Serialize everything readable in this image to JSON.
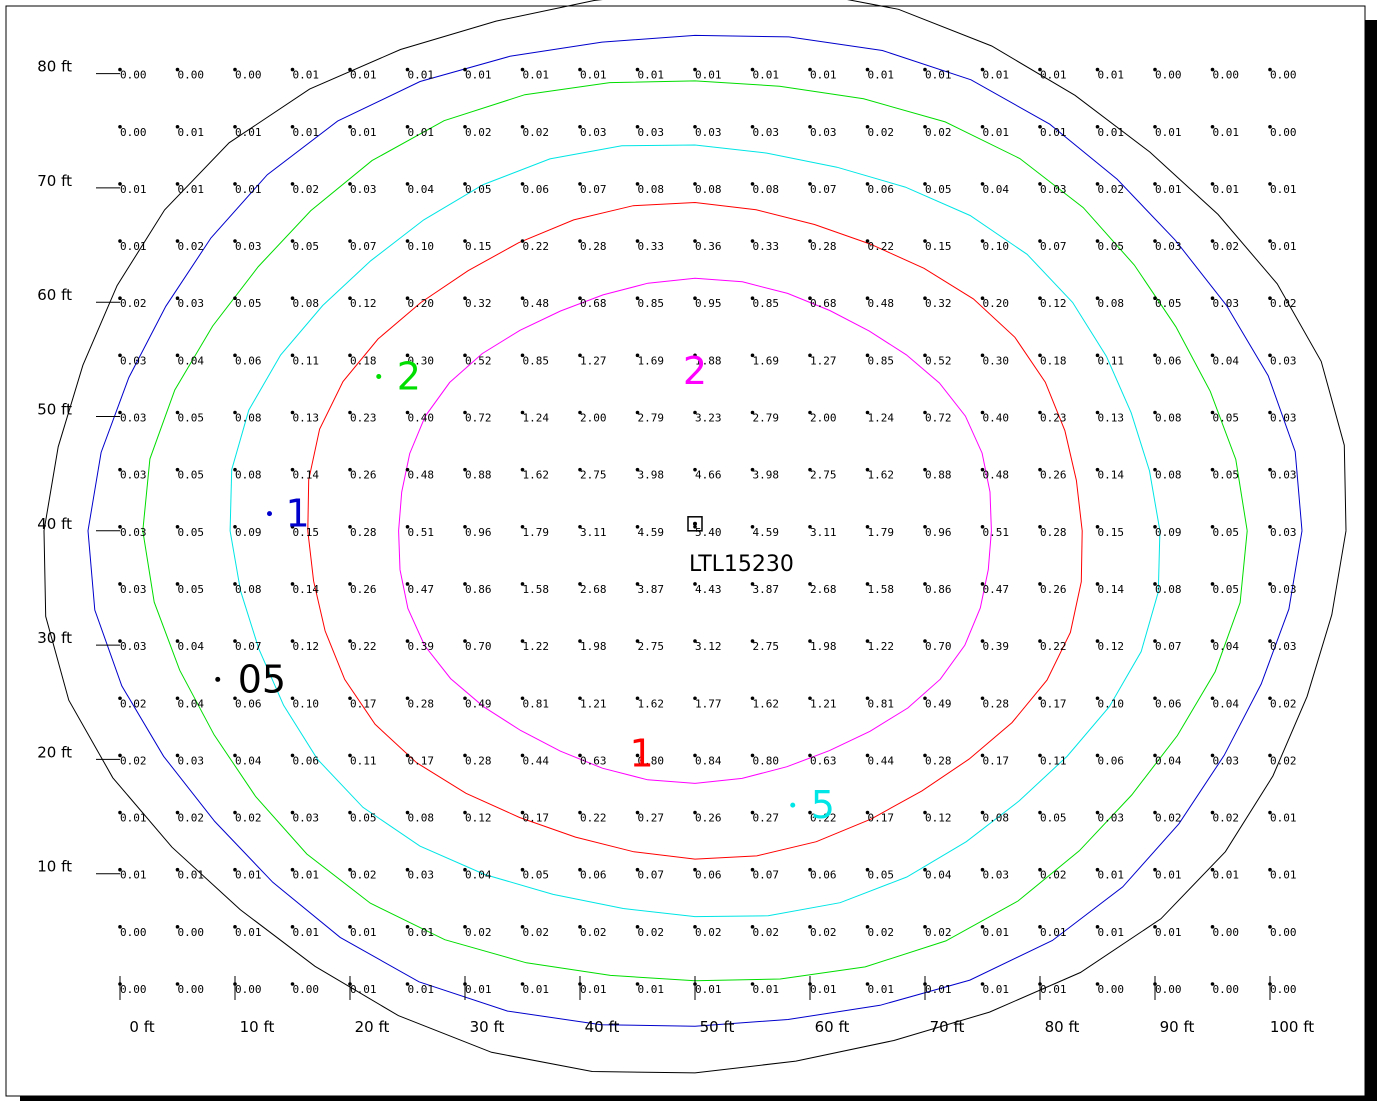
{
  "chart_data": {
    "type": "heatmap",
    "units": "ft",
    "x_ticks": [
      "0 ft",
      "10 ft",
      "20 ft",
      "30 ft",
      "40 ft",
      "50 ft",
      "60 ft",
      "70 ft",
      "80 ft",
      "90 ft",
      "100 ft"
    ],
    "y_ticks": [
      "80 ft",
      "70 ft",
      "60 ft",
      "50 ft",
      "40 ft",
      "30 ft",
      "20 ft",
      "10 ft"
    ],
    "x": [
      0,
      5,
      10,
      15,
      20,
      25,
      30,
      35,
      40,
      45,
      50,
      55,
      60,
      65,
      70,
      75,
      80,
      85,
      90,
      95,
      100
    ],
    "y": [
      80,
      75,
      70,
      65,
      60,
      55,
      50,
      45,
      40,
      35,
      30,
      25,
      20,
      15,
      10,
      5,
      0
    ],
    "grid_values": [
      [
        "0.00",
        "0.00",
        "0.00",
        "0.01",
        "0.01",
        "0.01",
        "0.01",
        "0.01",
        "0.01",
        "0.01",
        "0.01",
        "0.01",
        "0.01",
        "0.01",
        "0.01",
        "0.01",
        "0.01",
        "0.01",
        "0.00",
        "0.00",
        "0.00"
      ],
      [
        "0.00",
        "0.01",
        "0.01",
        "0.01",
        "0.01",
        "0.01",
        "0.02",
        "0.02",
        "0.03",
        "0.03",
        "0.03",
        "0.03",
        "0.03",
        "0.02",
        "0.02",
        "0.01",
        "0.01",
        "0.01",
        "0.01",
        "0.01",
        "0.00"
      ],
      [
        "0.01",
        "0.01",
        "0.01",
        "0.02",
        "0.03",
        "0.04",
        "0.05",
        "0.06",
        "0.07",
        "0.08",
        "0.08",
        "0.08",
        "0.07",
        "0.06",
        "0.05",
        "0.04",
        "0.03",
        "0.02",
        "0.01",
        "0.01",
        "0.01"
      ],
      [
        "0.01",
        "0.02",
        "0.03",
        "0.05",
        "0.07",
        "0.10",
        "0.15",
        "0.22",
        "0.28",
        "0.33",
        "0.36",
        "0.33",
        "0.28",
        "0.22",
        "0.15",
        "0.10",
        "0.07",
        "0.05",
        "0.03",
        "0.02",
        "0.01"
      ],
      [
        "0.02",
        "0.03",
        "0.05",
        "0.08",
        "0.12",
        "0.20",
        "0.32",
        "0.48",
        "0.68",
        "0.85",
        "0.95",
        "0.85",
        "0.68",
        "0.48",
        "0.32",
        "0.20",
        "0.12",
        "0.08",
        "0.05",
        "0.03",
        "0.02"
      ],
      [
        "0.03",
        "0.04",
        "0.06",
        "0.11",
        "0.18",
        "0.30",
        "0.52",
        "0.85",
        "1.27",
        "1.69",
        "1.88",
        "1.69",
        "1.27",
        "0.85",
        "0.52",
        "0.30",
        "0.18",
        "0.11",
        "0.06",
        "0.04",
        "0.03"
      ],
      [
        "0.03",
        "0.05",
        "0.08",
        "0.13",
        "0.23",
        "0.40",
        "0.72",
        "1.24",
        "2.00",
        "2.79",
        "3.23",
        "2.79",
        "2.00",
        "1.24",
        "0.72",
        "0.40",
        "0.23",
        "0.13",
        "0.08",
        "0.05",
        "0.03"
      ],
      [
        "0.03",
        "0.05",
        "0.08",
        "0.14",
        "0.26",
        "0.48",
        "0.88",
        "1.62",
        "2.75",
        "3.98",
        "4.66",
        "3.98",
        "2.75",
        "1.62",
        "0.88",
        "0.48",
        "0.26",
        "0.14",
        "0.08",
        "0.05",
        "0.03"
      ],
      [
        "0.03",
        "0.05",
        "0.09",
        "0.15",
        "0.28",
        "0.51",
        "0.96",
        "1.79",
        "3.11",
        "4.59",
        "5.40",
        "4.59",
        "3.11",
        "1.79",
        "0.96",
        "0.51",
        "0.28",
        "0.15",
        "0.09",
        "0.05",
        "0.03"
      ],
      [
        "0.03",
        "0.05",
        "0.08",
        "0.14",
        "0.26",
        "0.47",
        "0.86",
        "1.58",
        "2.68",
        "3.87",
        "4.43",
        "3.87",
        "2.68",
        "1.58",
        "0.86",
        "0.47",
        "0.26",
        "0.14",
        "0.08",
        "0.05",
        "0.03"
      ],
      [
        "0.03",
        "0.04",
        "0.07",
        "0.12",
        "0.22",
        "0.39",
        "0.70",
        "1.22",
        "1.98",
        "2.75",
        "3.12",
        "2.75",
        "1.98",
        "1.22",
        "0.70",
        "0.39",
        "0.22",
        "0.12",
        "0.07",
        "0.04",
        "0.03"
      ],
      [
        "0.02",
        "0.04",
        "0.06",
        "0.10",
        "0.17",
        "0.28",
        "0.49",
        "0.81",
        "1.21",
        "1.62",
        "1.77",
        "1.62",
        "1.21",
        "0.81",
        "0.49",
        "0.28",
        "0.17",
        "0.10",
        "0.06",
        "0.04",
        "0.02"
      ],
      [
        "0.02",
        "0.03",
        "0.04",
        "0.06",
        "0.11",
        "0.17",
        "0.28",
        "0.44",
        "0.63",
        "0.80",
        "0.84",
        "0.80",
        "0.63",
        "0.44",
        "0.28",
        "0.17",
        "0.11",
        "0.06",
        "0.04",
        "0.03",
        "0.02"
      ],
      [
        "0.01",
        "0.02",
        "0.02",
        "0.03",
        "0.05",
        "0.08",
        "0.12",
        "0.17",
        "0.22",
        "0.27",
        "0.26",
        "0.27",
        "0.22",
        "0.17",
        "0.12",
        "0.08",
        "0.05",
        "0.03",
        "0.02",
        "0.02",
        "0.01"
      ],
      [
        "0.01",
        "0.01",
        "0.01",
        "0.01",
        "0.02",
        "0.03",
        "0.04",
        "0.05",
        "0.06",
        "0.07",
        "0.06",
        "0.07",
        "0.06",
        "0.05",
        "0.04",
        "0.03",
        "0.02",
        "0.01",
        "0.01",
        "0.01",
        "0.01"
      ],
      [
        "0.00",
        "0.00",
        "0.01",
        "0.01",
        "0.01",
        "0.01",
        "0.02",
        "0.02",
        "0.02",
        "0.02",
        "0.02",
        "0.02",
        "0.02",
        "0.02",
        "0.02",
        "0.01",
        "0.01",
        "0.01",
        "0.01",
        "0.00",
        "0.00"
      ],
      [
        "0.00",
        "0.00",
        "0.00",
        "0.00",
        "0.01",
        "0.01",
        "0.01",
        "0.01",
        "0.01",
        "0.01",
        "0.01",
        "0.01",
        "0.01",
        "0.01",
        "0.01",
        "0.01",
        "0.01",
        "0.00",
        "0.00",
        "0.00",
        "0.00"
      ]
    ],
    "contours": [
      {
        "level": 0.05,
        "label": "05",
        "color": "#000000"
      },
      {
        "level": 0.1,
        "label": "1",
        "color": "#0000cc"
      },
      {
        "level": 0.2,
        "label": "2",
        "color": "#00dd00"
      },
      {
        "level": 0.5,
        "label": "5",
        "color": "#00e5e5"
      },
      {
        "level": 1,
        "label": "1",
        "color": "#ff0000"
      },
      {
        "level": 2,
        "label": "2",
        "color": "#ff00ff"
      }
    ],
    "fixture": {
      "label": "LTL15230",
      "x": 50,
      "y": 40
    }
  }
}
